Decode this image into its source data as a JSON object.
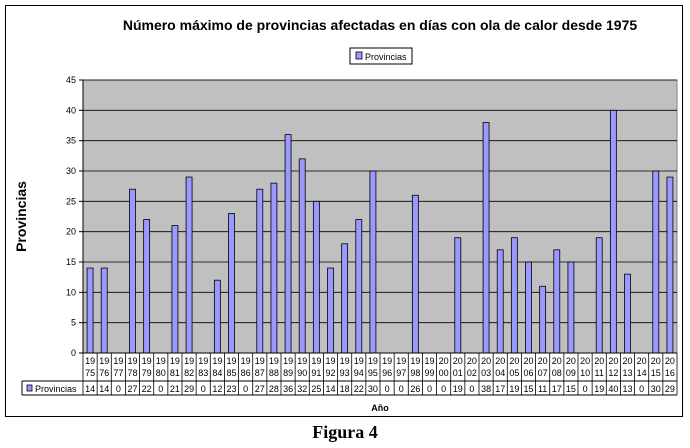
{
  "chart_data": {
    "type": "bar",
    "title": "Número máximo de provincias afectadas en días con ola de calor desde 1975",
    "xlabel": "Año",
    "ylabel": "Provincias",
    "ylim": [
      0,
      45
    ],
    "yticks": [
      0,
      5,
      10,
      15,
      20,
      25,
      30,
      35,
      40,
      45
    ],
    "grid": true,
    "legend": "top-center",
    "categories": [
      "1975",
      "1976",
      "1977",
      "1978",
      "1979",
      "1980",
      "1981",
      "1982",
      "1983",
      "1984",
      "1985",
      "1986",
      "1987",
      "1988",
      "1989",
      "1990",
      "1991",
      "1992",
      "1993",
      "1994",
      "1995",
      "1996",
      "1997",
      "1998",
      "1999",
      "2000",
      "2001",
      "2002",
      "2003",
      "2004",
      "2005",
      "2006",
      "2007",
      "2008",
      "2009",
      "2010",
      "2011",
      "2012",
      "2013",
      "2014",
      "2015",
      "2016"
    ],
    "series": [
      {
        "name": "Provincias",
        "color": "#9999ff",
        "values": [
          14,
          14,
          0,
          27,
          22,
          0,
          21,
          29,
          0,
          12,
          23,
          0,
          27,
          28,
          36,
          32,
          25,
          14,
          18,
          22,
          30,
          0,
          0,
          26,
          0,
          0,
          19,
          0,
          38,
          17,
          19,
          15,
          11,
          17,
          15,
          0,
          19,
          40,
          13,
          0,
          30,
          29
        ]
      }
    ]
  },
  "caption": "Figura 4"
}
